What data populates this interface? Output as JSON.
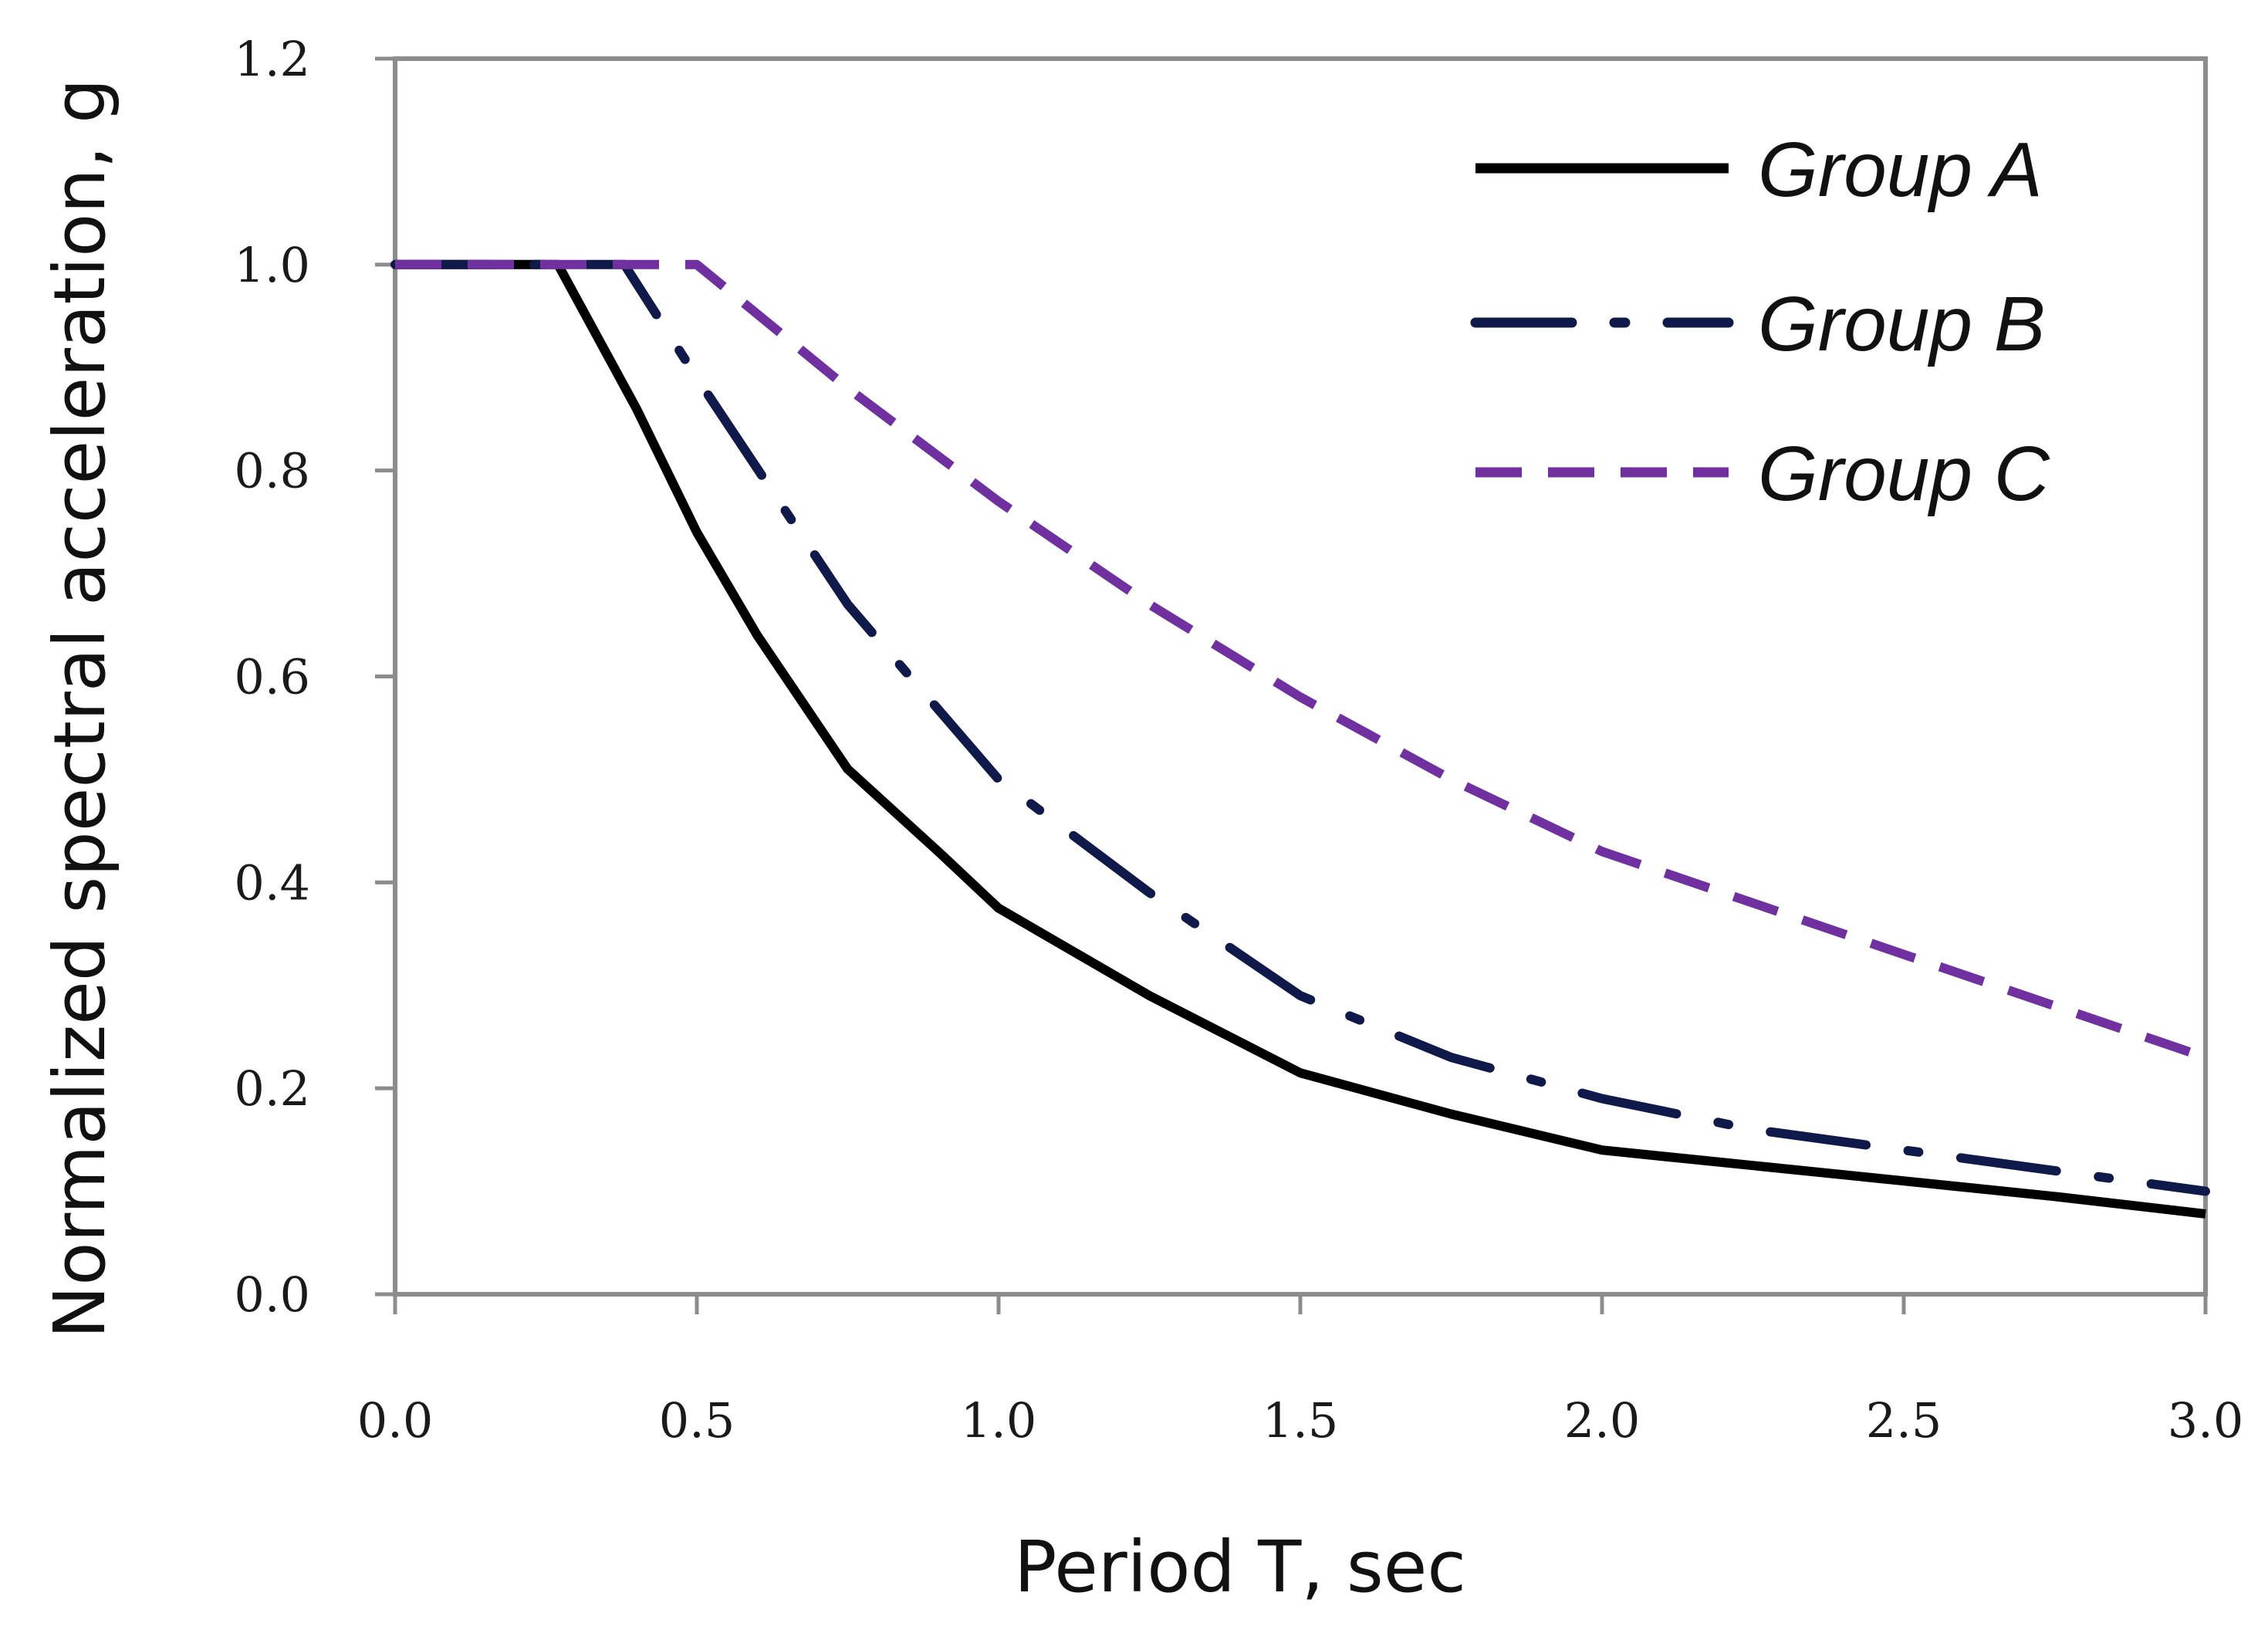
{
  "chart_data": {
    "type": "line",
    "title": "",
    "xlabel": "Period T, sec",
    "ylabel": "Normalized spectral acceleration, g",
    "xlim": [
      0,
      3
    ],
    "ylim": [
      0,
      1.2
    ],
    "xticks": [
      "0.0",
      "0.5",
      "1.0",
      "1.5",
      "2.0",
      "2.5",
      "3.0"
    ],
    "yticks": [
      "0.0",
      "0.2",
      "0.4",
      "0.6",
      "0.8",
      "1.0",
      "1.2"
    ],
    "grid": false,
    "legend_position": "top-right",
    "series": [
      {
        "name": "Group A",
        "color": "#000000",
        "style": "solid",
        "x": [
          0,
          0.27,
          0.4,
          0.5,
          0.6,
          0.75,
          0.9,
          1.0,
          1.25,
          1.5,
          1.75,
          2.0,
          2.25,
          2.5,
          2.75,
          3.0
        ],
        "y": [
          1.0,
          1.0,
          0.86,
          0.74,
          0.64,
          0.51,
          0.43,
          0.375,
          0.29,
          0.215,
          0.175,
          0.14,
          0.125,
          0.11,
          0.095,
          0.078
        ]
      },
      {
        "name": "Group B",
        "color": "#0f1a4a",
        "style": "dashdot",
        "x": [
          0,
          0.38,
          0.5,
          0.75,
          1.0,
          1.25,
          1.5,
          1.75,
          2.0,
          2.25,
          2.5,
          2.75,
          3.0
        ],
        "y": [
          1.0,
          1.0,
          0.89,
          0.67,
          0.5,
          0.39,
          0.29,
          0.23,
          0.19,
          0.16,
          0.14,
          0.12,
          0.1
        ]
      },
      {
        "name": "Group C",
        "color": "#7030a0",
        "style": "dashed",
        "x": [
          0,
          0.5,
          0.75,
          1.0,
          1.25,
          1.5,
          1.75,
          2.0,
          2.25,
          2.5,
          2.75,
          3.0
        ],
        "y": [
          1.0,
          1.0,
          0.88,
          0.77,
          0.67,
          0.58,
          0.5,
          0.43,
          0.38,
          0.33,
          0.28,
          0.23
        ]
      }
    ]
  }
}
